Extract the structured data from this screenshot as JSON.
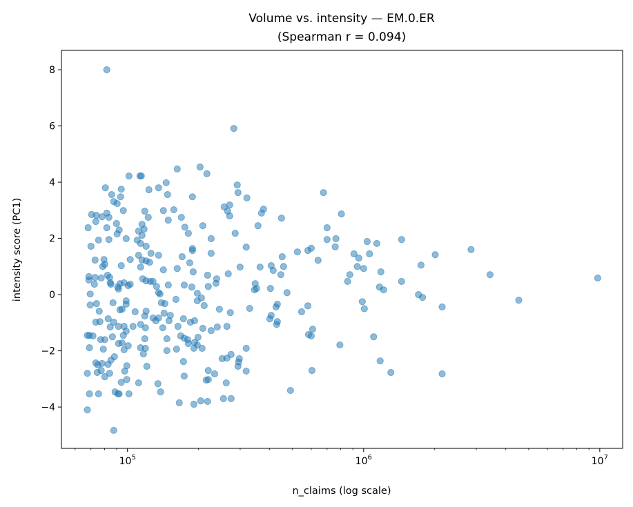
{
  "chart_data": {
    "type": "scatter",
    "title_line1": "Volume vs. intensity — EM.0.ER",
    "title_line2": "(Spearman r = 0.094)",
    "xlabel": "n_claims (log scale)",
    "ylabel": "intensity score (PC1)",
    "x_scale": "log",
    "xlim": [
      52500,
      12500000
    ],
    "ylim": [
      -5.47,
      8.69
    ],
    "grid": false,
    "marker_color": "#1f77b4",
    "marker_alpha": 0.5,
    "x_ticks": [
      {
        "value": 100000,
        "base": "10",
        "exp": "5"
      },
      {
        "value": 1000000,
        "base": "10",
        "exp": "6"
      },
      {
        "value": 10000000,
        "base": "10",
        "exp": "7"
      }
    ],
    "y_ticks": [
      {
        "value": 8,
        "label": "8"
      },
      {
        "value": 6,
        "label": "6"
      },
      {
        "value": 4,
        "label": "4"
      },
      {
        "value": 2,
        "label": "2"
      },
      {
        "value": 0,
        "label": "0"
      },
      {
        "value": -2,
        "label": "−2"
      },
      {
        "value": -4,
        "label": "−4"
      }
    ],
    "points": [
      [
        9800000,
        0.59
      ],
      [
        4540000,
        -0.2
      ],
      [
        3430000,
        0.71
      ],
      [
        2850000,
        1.6
      ],
      [
        2150000,
        -2.82
      ],
      [
        2150000,
        -0.44
      ],
      [
        2010000,
        1.42
      ],
      [
        1750000,
        1.05
      ],
      [
        1707000,
        0
      ],
      [
        1776000,
        -0.1
      ],
      [
        1448000,
        1.96
      ],
      [
        1448000,
        0.47
      ],
      [
        1304000,
        -2.77
      ],
      [
        1215000,
        0.17
      ],
      [
        1183000,
        0.81
      ],
      [
        1167000,
        0.27
      ],
      [
        1175000,
        -2.36
      ],
      [
        1137000,
        1.82
      ],
      [
        1102000,
        -1.5
      ],
      [
        1059000,
        1.45
      ],
      [
        1035000,
        1.89
      ],
      [
        1000000,
        0.93
      ],
      [
        987000,
        -0.25
      ],
      [
        1007000,
        -0.5
      ],
      [
        940000,
        1.0
      ],
      [
        954000,
        1.3
      ],
      [
        910000,
        1.45
      ],
      [
        874000,
        0.71
      ],
      [
        855000,
        0.47
      ],
      [
        805000,
        2.87
      ],
      [
        793000,
        -1.79
      ],
      [
        763000,
        1.99
      ],
      [
        758000,
        1.7
      ],
      [
        700000,
        1.96
      ],
      [
        700000,
        2.38
      ],
      [
        676000,
        3.63
      ],
      [
        641100,
        1.22
      ],
      [
        600000,
        1.65
      ],
      [
        608100,
        -1.23
      ],
      [
        600000,
        -1.47
      ],
      [
        584300,
        -1.42
      ],
      [
        604000,
        -2.7
      ],
      [
        580400,
        1.57
      ],
      [
        580400,
        -0.4
      ],
      [
        546100,
        -0.61
      ],
      [
        524300,
        1.52
      ],
      [
        490000,
        -3.41
      ],
      [
        473700,
        0.07
      ],
      [
        458000,
        1.0
      ],
      [
        451900,
        1.35
      ],
      [
        448900,
        2.72
      ],
      [
        445900,
        0.71
      ],
      [
        431200,
        -0.34
      ],
      [
        428300,
        -1.06
      ],
      [
        431200,
        -0.96
      ],
      [
        425500,
        -0.44
      ],
      [
        414100,
        0.86
      ],
      [
        405900,
        1.03
      ],
      [
        403100,
        0.22
      ],
      [
        405900,
        -0.74
      ],
      [
        400400,
        -0.86
      ],
      [
        376700,
        3.04
      ],
      [
        369100,
        2.9
      ],
      [
        364200,
        0.98
      ],
      [
        356900,
        2.45
      ],
      [
        352100,
        0.22
      ],
      [
        347400,
        0.39
      ],
      [
        345000,
        0.17
      ],
      [
        329100,
        -0.49
      ],
      [
        320300,
        3.44
      ],
      [
        318200,
        1.69
      ],
      [
        318200,
        -1.91
      ],
      [
        318200,
        -2.72
      ],
      [
        293600,
        3.63
      ],
      [
        291600,
        3.9
      ],
      [
        299600,
        0.98
      ],
      [
        297600,
        -2.28
      ],
      [
        295600,
        -2.4
      ],
      [
        293600,
        -2.55
      ],
      [
        282000,
        5.91
      ],
      [
        285800,
        2.18
      ],
      [
        270800,
        3.19
      ],
      [
        270800,
        2.8
      ],
      [
        267200,
        0.74
      ],
      [
        272600,
        -0.64
      ],
      [
        274500,
        -2.13
      ],
      [
        256700,
        3.12
      ],
      [
        265400,
        2.97
      ],
      [
        263600,
        -1.13
      ],
      [
        263600,
        -2.26
      ],
      [
        251600,
        -2.28
      ],
      [
        255000,
        -3.7
      ],
      [
        274500,
        -3.7
      ],
      [
        261900,
        -3.14
      ],
      [
        245000,
        -0.52
      ],
      [
        240100,
        -1.15
      ],
      [
        238500,
        0.56
      ],
      [
        236900,
        0.4
      ],
      [
        233800,
        -2.82
      ],
      [
        226000,
        1.99
      ],
      [
        226000,
        1.47
      ],
      [
        226000,
        -1.28
      ],
      [
        219900,
        0.29
      ],
      [
        216900,
        4.3
      ],
      [
        218400,
        0.69
      ],
      [
        219900,
        -2.7
      ],
      [
        219900,
        -3.02
      ],
      [
        215500,
        -3.04
      ],
      [
        218400,
        -3.8
      ],
      [
        204200,
        -3.78
      ],
      [
        211200,
        -0.39
      ],
      [
        208400,
        -1.2
      ],
      [
        207000,
        -1.91
      ],
      [
        205600,
        -0.12
      ],
      [
        202900,
        4.54
      ],
      [
        208400,
        2.45
      ],
      [
        197500,
        0.05
      ],
      [
        197500,
        -0.22
      ],
      [
        198800,
        -1.52
      ],
      [
        197500,
        -1.79
      ],
      [
        191000,
        -3.9
      ],
      [
        192300,
        -0.93
      ],
      [
        192300,
        -1.7
      ],
      [
        191000,
        -1.91
      ],
      [
        188400,
        3.48
      ],
      [
        188400,
        1.64
      ],
      [
        188400,
        1.57
      ],
      [
        189700,
        0.81
      ],
      [
        187200,
        0.27
      ],
      [
        184700,
        -0.98
      ],
      [
        181000,
        2.18
      ],
      [
        183400,
        1.13
      ],
      [
        179800,
        -1.6
      ],
      [
        181000,
        -1.74
      ],
      [
        174900,
        2.4
      ],
      [
        173800,
        0.34
      ],
      [
        173800,
        -1.55
      ],
      [
        172600,
        -0.86
      ],
      [
        172600,
        -2.38
      ],
      [
        173800,
        -2.9
      ],
      [
        169100,
        2.75
      ],
      [
        170300,
        1.35
      ],
      [
        168000,
        -1.47
      ],
      [
        165700,
        -3.85
      ],
      [
        163500,
        -1.13
      ],
      [
        162400,
        0.93
      ],
      [
        160300,
        -0.17
      ],
      [
        161300,
        -1.94
      ],
      [
        157000,
        3.02
      ],
      [
        162400,
        4.47
      ],
      [
        151800,
        -0.74
      ],
      [
        149800,
        -0.93
      ],
      [
        148800,
        0.34
      ],
      [
        148800,
        2.65
      ],
      [
        146800,
        -1.57
      ],
      [
        146800,
        -1.99
      ],
      [
        147800,
        3.56
      ],
      [
        145800,
        3.98
      ],
      [
        143900,
        -0.32
      ],
      [
        142900,
        -0.66
      ],
      [
        141900,
        2.99
      ],
      [
        141900,
        0.88
      ],
      [
        141000,
        -1.18
      ],
      [
        139100,
        -0.29
      ],
      [
        138100,
        -3.46
      ],
      [
        134500,
        -3.17
      ],
      [
        135400,
        -0.83
      ],
      [
        135400,
        1.4
      ],
      [
        137200,
        0.02
      ],
      [
        135400,
        3.8
      ],
      [
        135400,
        0.07
      ],
      [
        131800,
        -0.93
      ],
      [
        132700,
        0.29
      ],
      [
        128300,
        0.47
      ],
      [
        128300,
        -0.83
      ],
      [
        125700,
        1.47
      ],
      [
        124900,
        0.47
      ],
      [
        124000,
        1.15
      ],
      [
        123200,
        3.73
      ],
      [
        122400,
        2.75
      ],
      [
        119900,
        -0.59
      ],
      [
        119900,
        1.2
      ],
      [
        119900,
        0.49
      ],
      [
        119900,
        1.72
      ],
      [
        120700,
        -2.55
      ],
      [
        119100,
        -1.91
      ],
      [
        119100,
        -1.18
      ],
      [
        118300,
        -1.57
      ],
      [
        118300,
        -0.76
      ],
      [
        118300,
        2.97
      ],
      [
        117500,
        2.33
      ],
      [
        116800,
        -2.11
      ],
      [
        115200,
        1.23
      ],
      [
        115200,
        2.5
      ],
      [
        115200,
        2.11
      ],
      [
        116000,
        0.56
      ],
      [
        113600,
        -1.06
      ],
      [
        113600,
        -1.89
      ],
      [
        114400,
        4.22
      ],
      [
        113600,
        0.98
      ],
      [
        113600,
        1.82
      ],
      [
        112900,
        4.22
      ],
      [
        111400,
        1.4
      ],
      [
        111400,
        2.26
      ],
      [
        111400,
        -3.14
      ],
      [
        109900,
        1.94
      ],
      [
        107700,
        -0.61
      ],
      [
        105500,
        -1.13
      ],
      [
        102700,
        1.25
      ],
      [
        102700,
        0.37
      ],
      [
        101400,
        4.22
      ],
      [
        100700,
        0.32
      ],
      [
        100700,
        -1.82
      ],
      [
        98700,
        1.99
      ],
      [
        98700,
        -1.3
      ],
      [
        98700,
        -0.22
      ],
      [
        99300,
        -3.02
      ],
      [
        99300,
        -2.53
      ],
      [
        98700,
        -0.34
      ],
      [
        97300,
        -2.72
      ],
      [
        96700,
        -1.13
      ],
      [
        96700,
        0.42
      ],
      [
        96700,
        -1.96
      ],
      [
        96000,
        -1.45
      ],
      [
        96000,
        2.99
      ],
      [
        94800,
        -0.52
      ],
      [
        94800,
        -1.72
      ],
      [
        94100,
        3.75
      ],
      [
        94100,
        1.03
      ],
      [
        93500,
        3.48
      ],
      [
        92900,
        -0.54
      ],
      [
        92900,
        0.39
      ],
      [
        92200,
        2.3
      ],
      [
        92200,
        -3.53
      ],
      [
        91600,
        0.2
      ],
      [
        91600,
        -1.74
      ],
      [
        91600,
        -1.13
      ],
      [
        91000,
        0.27
      ],
      [
        90400,
        3.24
      ],
      [
        90400,
        2.16
      ],
      [
        89800,
        2.53
      ],
      [
        88600,
        -3.46
      ],
      [
        88000,
        -2.21
      ],
      [
        87400,
        -0.98
      ],
      [
        87400,
        3.31
      ],
      [
        86800,
        -0.29
      ],
      [
        86300,
        -1.5
      ],
      [
        85700,
        3.56
      ],
      [
        85100,
        -2.33
      ],
      [
        85100,
        0.37
      ],
      [
        84500,
        0.42
      ],
      [
        84500,
        -1.15
      ],
      [
        84000,
        -2.8
      ],
      [
        84000,
        0.61
      ],
      [
        83400,
        2.75
      ],
      [
        83400,
        1.96
      ],
      [
        82800,
        -0.86
      ],
      [
        82800,
        -2.48
      ],
      [
        82300,
        0.69
      ],
      [
        81700,
        2.38
      ],
      [
        81700,
        2.9
      ],
      [
        80600,
        3.8
      ],
      [
        80100,
        -2.92
      ],
      [
        80100,
        1.08
      ],
      [
        79500,
        1.25
      ],
      [
        80100,
        -1.6
      ],
      [
        79000,
        -1.94
      ],
      [
        78500,
        1.0
      ],
      [
        78000,
        -2.45
      ],
      [
        78000,
        2.77
      ],
      [
        77400,
        0.59
      ],
      [
        77400,
        -2.7
      ],
      [
        76900,
        -1.6
      ],
      [
        76400,
        -0.96
      ],
      [
        75900,
        -0.59
      ],
      [
        75400,
        1.94
      ],
      [
        74900,
        -2.5
      ],
      [
        73900,
        2.82
      ],
      [
        74400,
        -2.77
      ],
      [
        73900,
        -0.32
      ],
      [
        73400,
        2.6
      ],
      [
        73400,
        -2.43
      ],
      [
        73400,
        -0.98
      ],
      [
        72900,
        0.61
      ],
      [
        72900,
        1.23
      ],
      [
        72400,
        0.37
      ],
      [
        70500,
        2.85
      ],
      [
        70000,
        1.72
      ],
      [
        69500,
        -0.37
      ],
      [
        69000,
        -3.53
      ],
      [
        69500,
        0.02
      ],
      [
        69000,
        -1.45
      ],
      [
        69000,
        -1.89
      ],
      [
        68600,
        0.52
      ],
      [
        68600,
        0.64
      ],
      [
        68100,
        2.38
      ],
      [
        67600,
        -4.1
      ],
      [
        67600,
        -2.8
      ],
      [
        67600,
        -1.45
      ],
      [
        71400,
        -1.47
      ],
      [
        75400,
        -3.53
      ],
      [
        81700,
        8.0
      ],
      [
        87400,
        -4.83
      ],
      [
        91000,
        -3.53
      ],
      [
        101400,
        -3.53
      ],
      [
        94100,
        -3.12
      ]
    ]
  }
}
